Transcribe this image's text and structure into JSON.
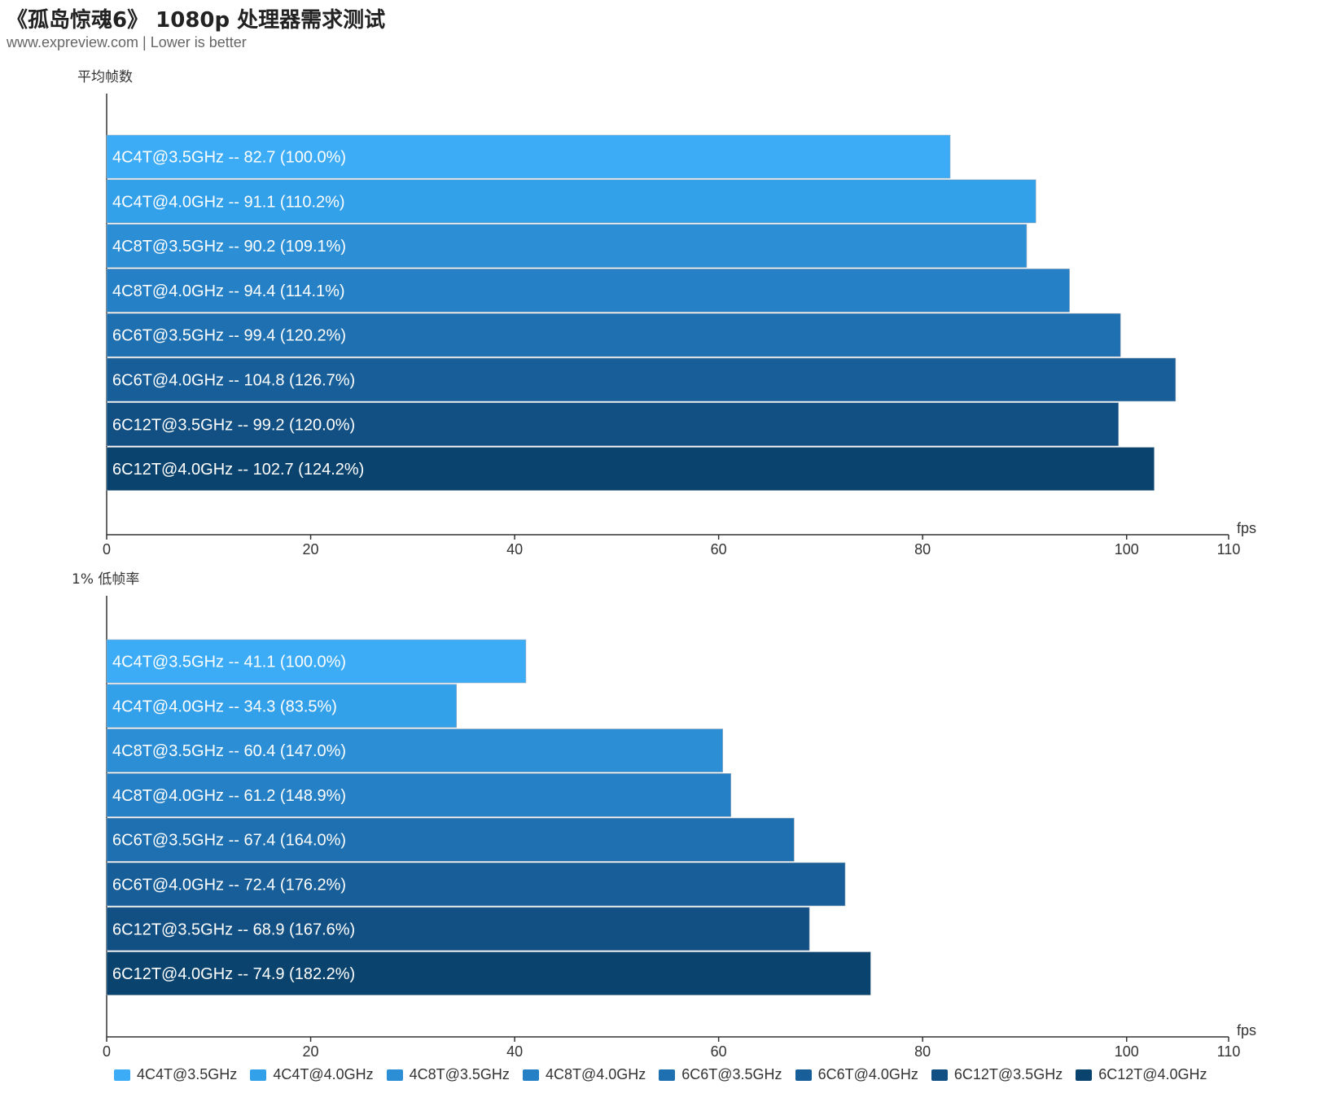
{
  "title": "《孤岛惊魂6》 1080p 处理器需求测试",
  "subtitle": "www.expreview.com | Lower is better",
  "colors": [
    "#3dacf7",
    "#33a0ea",
    "#2c8fd6",
    "#2580c5",
    "#1f70b0",
    "#185f9a",
    "#125084",
    "#0a436e"
  ],
  "legend": [
    "4C4T@3.5GHz",
    "4C4T@4.0GHz",
    "4C8T@3.5GHz",
    "4C8T@4.0GHz",
    "6C6T@3.5GHz",
    "6C6T@4.0GHz",
    "6C12T@3.5GHz",
    "6C12T@4.0GHz"
  ],
  "chart_data": [
    {
      "type": "bar",
      "orientation": "horizontal",
      "title": "平均帧数",
      "unit": "fps",
      "xlim": [
        0,
        110
      ],
      "ticks": [
        0,
        20,
        40,
        60,
        80,
        100,
        110
      ],
      "categories": [
        "4C4T@3.5GHz",
        "4C4T@4.0GHz",
        "4C8T@3.5GHz",
        "4C8T@4.0GHz",
        "6C6T@3.5GHz",
        "6C6T@4.0GHz",
        "6C12T@3.5GHz",
        "6C12T@4.0GHz"
      ],
      "values": [
        82.7,
        91.1,
        90.2,
        94.4,
        99.4,
        104.8,
        99.2,
        102.7
      ],
      "percents": [
        "100.0%",
        "110.2%",
        "109.1%",
        "114.1%",
        "120.2%",
        "126.7%",
        "120.0%",
        "124.2%"
      ]
    },
    {
      "type": "bar",
      "orientation": "horizontal",
      "title": "1% 低帧率",
      "unit": "fps",
      "xlim": [
        0,
        110
      ],
      "ticks": [
        0,
        20,
        40,
        60,
        80,
        100,
        110
      ],
      "categories": [
        "4C4T@3.5GHz",
        "4C4T@4.0GHz",
        "4C8T@3.5GHz",
        "4C8T@4.0GHz",
        "6C6T@3.5GHz",
        "6C6T@4.0GHz",
        "6C12T@3.5GHz",
        "6C12T@4.0GHz"
      ],
      "values": [
        41.1,
        34.3,
        60.4,
        61.2,
        67.4,
        72.4,
        68.9,
        74.9
      ],
      "percents": [
        "100.0%",
        "83.5%",
        "147.0%",
        "148.9%",
        "164.0%",
        "176.2%",
        "167.6%",
        "182.2%"
      ]
    }
  ]
}
